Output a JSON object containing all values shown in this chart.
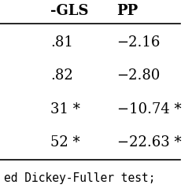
{
  "col_headers": [
    "-GLS",
    "PP"
  ],
  "rows": [
    [
      ".81",
      "−2.16"
    ],
    [
      ".82",
      "−2.80"
    ],
    [
      "31 *",
      "−10.74 *"
    ],
    [
      "52 *",
      "−22.63 *"
    ]
  ],
  "footer": "ed Dickey-Fuller test;",
  "bg_color": "#ffffff",
  "text_color": "#000000",
  "header_fontsize": 13,
  "body_fontsize": 13,
  "footer_fontsize": 10.5,
  "figsize": [
    2.44,
    2.44
  ],
  "dpi": 100
}
